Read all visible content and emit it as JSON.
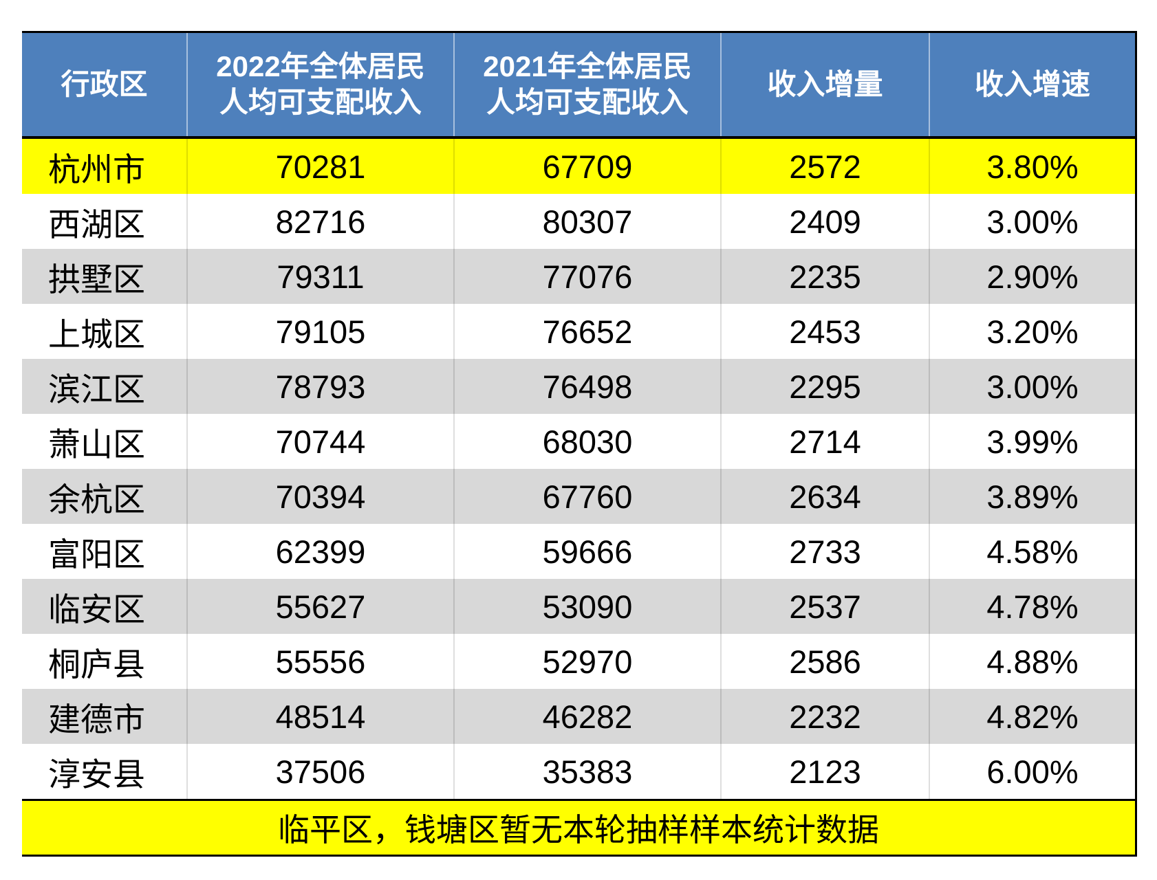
{
  "page": {
    "background": "#FFFFFF"
  },
  "table": {
    "columns": [
      {
        "id": "region",
        "lines": [
          "行政区"
        ]
      },
      {
        "id": "income-2022",
        "lines": [
          "2022年全体居民",
          "人均可支配收入"
        ]
      },
      {
        "id": "income-2021",
        "lines": [
          "2021年全体居民",
          "人均可支配收入"
        ]
      },
      {
        "id": "income-increase",
        "lines": [
          "收入增量"
        ]
      },
      {
        "id": "income-growth-rate",
        "lines": [
          "收入增速"
        ]
      }
    ],
    "rows": [
      {
        "region": "杭州市",
        "y2022": "70281",
        "y2021": "67709",
        "delta": "2572",
        "rate": "3.80%",
        "highlight": true
      },
      {
        "region": "西湖区",
        "y2022": "82716",
        "y2021": "80307",
        "delta": "2409",
        "rate": "3.00%"
      },
      {
        "region": "拱墅区",
        "y2022": "79311",
        "y2021": "77076",
        "delta": "2235",
        "rate": "2.90%"
      },
      {
        "region": "上城区",
        "y2022": "79105",
        "y2021": "76652",
        "delta": "2453",
        "rate": "3.20%"
      },
      {
        "region": "滨江区",
        "y2022": "78793",
        "y2021": "76498",
        "delta": "2295",
        "rate": "3.00%"
      },
      {
        "region": "萧山区",
        "y2022": "70744",
        "y2021": "68030",
        "delta": "2714",
        "rate": "3.99%"
      },
      {
        "region": "余杭区",
        "y2022": "70394",
        "y2021": "67760",
        "delta": "2634",
        "rate": "3.89%"
      },
      {
        "region": "富阳区",
        "y2022": "62399",
        "y2021": "59666",
        "delta": "2733",
        "rate": "4.58%"
      },
      {
        "region": "临安区",
        "y2022": "55627",
        "y2021": "53090",
        "delta": "2537",
        "rate": "4.78%"
      },
      {
        "region": "桐庐县",
        "y2022": "55556",
        "y2021": "52970",
        "delta": "2586",
        "rate": "4.88%"
      },
      {
        "region": "建德市",
        "y2022": "48514",
        "y2021": "46282",
        "delta": "2232",
        "rate": "4.82%"
      },
      {
        "region": "淳安县",
        "y2022": "37506",
        "y2021": "35383",
        "delta": "2123",
        "rate": "6.00%"
      }
    ],
    "footnote": "临平区，钱塘区暂无本轮抽样样本统计数据",
    "colors": {
      "header_bg": "#4E80BC",
      "header_text": "#FFFFFF",
      "highlight_bg": "#FFFF00",
      "row_bg": "#FFFFFF",
      "row_alt_bg": "#D8D8D8",
      "body_text": "#000000",
      "rule": "#000000"
    }
  },
  "chart_data": {
    "type": "table",
    "title": "",
    "columns": [
      "行政区",
      "2022年全体居民人均可支配收入",
      "2021年全体居民人均可支配收入",
      "收入增量",
      "收入增速"
    ],
    "rows": [
      [
        "杭州市",
        70281,
        67709,
        2572,
        "3.80%"
      ],
      [
        "西湖区",
        82716,
        80307,
        2409,
        "3.00%"
      ],
      [
        "拱墅区",
        79311,
        77076,
        2235,
        "2.90%"
      ],
      [
        "上城区",
        79105,
        76652,
        2453,
        "3.20%"
      ],
      [
        "滨江区",
        78793,
        76498,
        2295,
        "3.00%"
      ],
      [
        "萧山区",
        70744,
        68030,
        2714,
        "3.99%"
      ],
      [
        "余杭区",
        70394,
        67760,
        2634,
        "3.89%"
      ],
      [
        "富阳区",
        62399,
        59666,
        2733,
        "4.58%"
      ],
      [
        "临安区",
        55627,
        53090,
        2537,
        "4.78%"
      ],
      [
        "桐庐县",
        55556,
        52970,
        2586,
        "4.88%"
      ],
      [
        "建德市",
        48514,
        46282,
        2232,
        "4.82%"
      ],
      [
        "淳安县",
        37506,
        35383,
        2123,
        "6.00%"
      ]
    ],
    "highlighted_row": "杭州市",
    "footnote": "临平区，钱塘区暂无本轮抽样样本统计数据"
  }
}
